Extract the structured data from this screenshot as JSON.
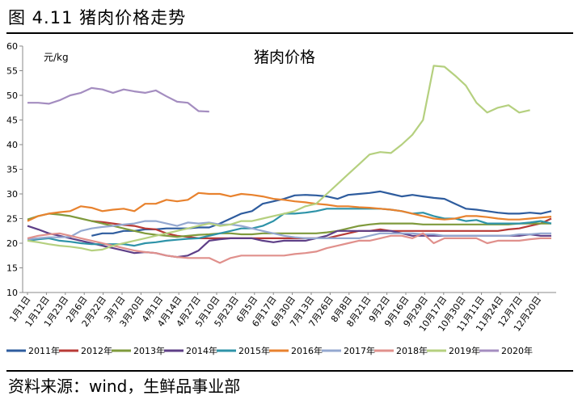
{
  "header": {
    "figure_title": "图 4.11 猪肉价格走势"
  },
  "footer": {
    "source": "资料来源：wind，生鲜品事业部"
  },
  "chart_data": {
    "type": "line",
    "title": "猪肉价格",
    "ylabel": "元/kg",
    "xlabel": "",
    "ylim": [
      10,
      60
    ],
    "y_ticks": [
      10,
      15,
      20,
      25,
      30,
      35,
      40,
      45,
      50,
      55,
      60
    ],
    "grid": false,
    "legend_position": "bottom",
    "x_count": 50,
    "x_tick_labels": [
      "1月1日",
      "1月12日",
      "1月23日",
      "2月6日",
      "2月22日",
      "3月7日",
      "3月20日",
      "4月1日",
      "4月14日",
      "4月27日",
      "5月10日",
      "5月23日",
      "6月5日",
      "6月17日",
      "6月30日",
      "7月13日",
      "7月26日",
      "8月8日",
      "8月21日",
      "9月2日",
      "9月16日",
      "9月29日",
      "10月17日",
      "10月30日",
      "11月11日",
      "11月24日",
      "12月7日",
      "12月20日"
    ],
    "series": [
      {
        "name": "2011年",
        "color": "#2E5C9E",
        "values": [
          null,
          null,
          null,
          null,
          null,
          null,
          21.5,
          22.0,
          22.0,
          22.5,
          22.5,
          22.8,
          22.8,
          23.0,
          23.0,
          23.0,
          23.2,
          23.2,
          24.0,
          25.0,
          26.0,
          26.5,
          28.0,
          28.5,
          29.0,
          29.7,
          29.8,
          29.7,
          29.5,
          29.0,
          29.8,
          30.0,
          30.2,
          30.5,
          30.0,
          29.5,
          29.8,
          29.5,
          29.2,
          29.0,
          28.0,
          27.0,
          26.8,
          26.5,
          26.2,
          26.0,
          26.0,
          26.2,
          26.0,
          26.5
        ]
      },
      {
        "name": "2012年",
        "color": "#B83A36",
        "values": [
          null,
          null,
          null,
          null,
          null,
          null,
          24.5,
          24.3,
          24.0,
          23.7,
          23.5,
          23.0,
          22.8,
          22.0,
          21.5,
          21.3,
          21.0,
          21.0,
          21.0,
          21.0,
          21.0,
          21.0,
          21.0,
          21.0,
          21.0,
          21.0,
          21.0,
          21.0,
          21.0,
          21.5,
          22.0,
          22.5,
          22.5,
          22.8,
          22.5,
          22.5,
          22.5,
          22.5,
          22.5,
          22.5,
          22.5,
          22.5,
          22.5,
          22.5,
          22.5,
          22.8,
          23.0,
          23.5,
          24.0,
          25.0
        ]
      },
      {
        "name": "2013年",
        "color": "#7F9A3C",
        "values": [
          24.8,
          25.5,
          26.0,
          25.8,
          25.5,
          25.0,
          24.5,
          24.0,
          23.5,
          23.0,
          22.5,
          22.0,
          21.7,
          21.5,
          21.3,
          21.5,
          21.7,
          21.8,
          22.0,
          22.0,
          21.8,
          21.8,
          22.0,
          22.0,
          22.0,
          22.0,
          22.0,
          22.0,
          22.2,
          22.5,
          23.0,
          23.5,
          23.8,
          24.0,
          24.0,
          24.0,
          24.0,
          23.8,
          23.8,
          23.8,
          23.8,
          23.8,
          23.8,
          23.8,
          23.8,
          23.8,
          24.0,
          24.0,
          24.0,
          24.0
        ]
      },
      {
        "name": "2014年",
        "color": "#5E3F87",
        "values": [
          23.5,
          22.8,
          22.0,
          21.5,
          21.0,
          20.5,
          20.0,
          19.5,
          19.0,
          18.5,
          18.0,
          18.2,
          18.0,
          17.5,
          17.2,
          17.5,
          18.5,
          20.5,
          20.8,
          21.0,
          21.0,
          21.0,
          20.5,
          20.2,
          20.5,
          20.5,
          20.5,
          21.0,
          21.5,
          22.5,
          22.5,
          22.5,
          22.5,
          22.5,
          22.5,
          22.0,
          21.5,
          21.5,
          21.5,
          21.5,
          21.5,
          21.5,
          21.5,
          21.5,
          21.5,
          21.5,
          21.5,
          21.8,
          21.5,
          21.5
        ]
      },
      {
        "name": "2015年",
        "color": "#2E93A8",
        "values": [
          20.5,
          20.8,
          21.0,
          20.5,
          20.3,
          20.0,
          19.8,
          19.8,
          19.8,
          19.8,
          19.5,
          20.0,
          20.2,
          20.5,
          20.7,
          20.9,
          21.0,
          21.5,
          22.0,
          22.5,
          23.0,
          23.0,
          23.5,
          24.5,
          26.0,
          26.0,
          26.2,
          26.5,
          27.0,
          27.0,
          27.0,
          27.0,
          27.0,
          27.0,
          26.8,
          26.5,
          26.0,
          26.2,
          25.5,
          25.0,
          25.0,
          24.5,
          24.7,
          24.0,
          24.0,
          24.0,
          24.0,
          24.2,
          24.5,
          24.0
        ]
      },
      {
        "name": "2016年",
        "color": "#E8822E",
        "values": [
          24.5,
          25.5,
          26.0,
          26.3,
          26.5,
          27.5,
          27.2,
          26.5,
          26.8,
          27.0,
          26.5,
          28.0,
          28.0,
          28.8,
          28.5,
          28.8,
          30.2,
          30.0,
          30.0,
          29.5,
          30.0,
          29.8,
          29.5,
          29.0,
          28.8,
          28.5,
          28.3,
          28.0,
          27.8,
          27.5,
          27.5,
          27.3,
          27.2,
          27.0,
          26.8,
          26.5,
          26.0,
          25.5,
          25.0,
          24.8,
          25.0,
          25.5,
          25.5,
          25.3,
          25.0,
          24.8,
          24.8,
          25.0,
          25.2,
          25.4
        ]
      },
      {
        "name": "2017年",
        "color": "#94A8D0",
        "values": [
          20.8,
          21.0,
          21.2,
          21.2,
          21.3,
          22.5,
          23.0,
          23.3,
          23.5,
          23.8,
          24.0,
          24.5,
          24.5,
          24.0,
          23.5,
          24.2,
          24.0,
          24.2,
          23.8,
          23.8,
          23.5,
          23.0,
          22.5,
          22.0,
          21.5,
          21.2,
          21.0,
          21.0,
          21.0,
          21.0,
          21.0,
          21.0,
          21.5,
          22.0,
          22.0,
          22.0,
          22.0,
          21.8,
          21.8,
          21.5,
          21.5,
          21.5,
          21.5,
          21.5,
          21.5,
          21.5,
          21.8,
          21.8,
          22.0,
          22.0
        ]
      },
      {
        "name": "2018年",
        "color": "#E0908C",
        "values": [
          21.0,
          21.5,
          21.8,
          22.0,
          21.5,
          21.0,
          20.5,
          20.0,
          19.5,
          19.0,
          18.5,
          18.2,
          18.0,
          17.5,
          17.2,
          17.0,
          17.0,
          17.0,
          16.0,
          17.0,
          17.5,
          17.5,
          17.5,
          17.5,
          17.5,
          17.8,
          18.0,
          18.3,
          19.0,
          19.5,
          20.0,
          20.5,
          20.5,
          21.0,
          21.5,
          21.5,
          21.0,
          22.0,
          20.0,
          21.0,
          21.0,
          21.0,
          21.0,
          20.0,
          20.5,
          20.5,
          20.5,
          20.8,
          21.0,
          21.0
        ]
      },
      {
        "name": "2019年",
        "color": "#B5D07F",
        "values": [
          20.5,
          20.2,
          19.8,
          19.5,
          19.3,
          19.0,
          18.5,
          18.7,
          19.5,
          20.0,
          20.5,
          21.0,
          21.5,
          22.0,
          22.5,
          23.0,
          23.5,
          24.0,
          23.5,
          23.8,
          24.5,
          24.5,
          25.0,
          25.5,
          26.0,
          26.5,
          27.5,
          28.0,
          30.0,
          32.0,
          34.0,
          36.0,
          38.0,
          38.5,
          38.3,
          40.0,
          42.0,
          45.0,
          56.0,
          55.8,
          54.0,
          52.0,
          48.5,
          46.5,
          47.5,
          48.0,
          46.5,
          47.0,
          null,
          null
        ]
      },
      {
        "name": "2020年",
        "color": "#A48DC0",
        "values": [
          48.5,
          48.5,
          48.3,
          49.0,
          50.0,
          50.5,
          51.5,
          51.2,
          50.5,
          51.2,
          50.8,
          50.5,
          51.0,
          49.8,
          48.7,
          48.5,
          46.8,
          46.7,
          null,
          null,
          null,
          null,
          null,
          null,
          null,
          null,
          null,
          null,
          null,
          null,
          null,
          null,
          null,
          null,
          null,
          null,
          null,
          null,
          null,
          null,
          null,
          null,
          null,
          null,
          null,
          null,
          null,
          null,
          null,
          null
        ]
      }
    ]
  }
}
